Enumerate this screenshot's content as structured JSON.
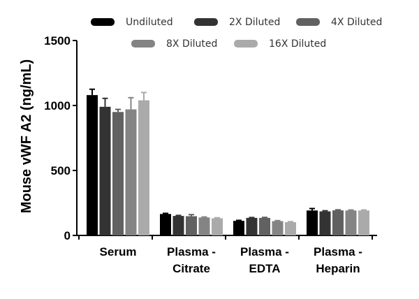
{
  "chart_data": {
    "type": "bar",
    "title": "",
    "xlabel": "",
    "ylabel": "Mouse vWF A2 (ng/mL)",
    "ylim": [
      0,
      1500
    ],
    "yticks": [
      "0",
      "500",
      "1000",
      "1500"
    ],
    "grid": false,
    "legend_position": "top",
    "categories": [
      [
        "Serum"
      ],
      [
        "Plasma -",
        "Citrate"
      ],
      [
        "Plasma -",
        "EDTA"
      ],
      [
        "Plasma -",
        "Heparin"
      ]
    ],
    "series": [
      {
        "name": "Undiluted",
        "color": "#000000",
        "values": [
          1080,
          165,
          112,
          192
        ],
        "errors": [
          45,
          5,
          4,
          15
        ]
      },
      {
        "name": "2X Diluted",
        "color": "#333333",
        "values": [
          990,
          150,
          135,
          185
        ],
        "errors": [
          65,
          4,
          3,
          5
        ]
      },
      {
        "name": "4X Diluted",
        "color": "#616161",
        "values": [
          950,
          148,
          135,
          193
        ],
        "errors": [
          20,
          12,
          4,
          4
        ]
      },
      {
        "name": "8X Diluted",
        "color": "#848484",
        "values": [
          970,
          138,
          110,
          192
        ],
        "errors": [
          90,
          4,
          4,
          4
        ]
      },
      {
        "name": "16X Diluted",
        "color": "#aaaaaa",
        "values": [
          1040,
          132,
          102,
          192
        ],
        "errors": [
          60,
          4,
          4,
          4
        ]
      }
    ]
  }
}
